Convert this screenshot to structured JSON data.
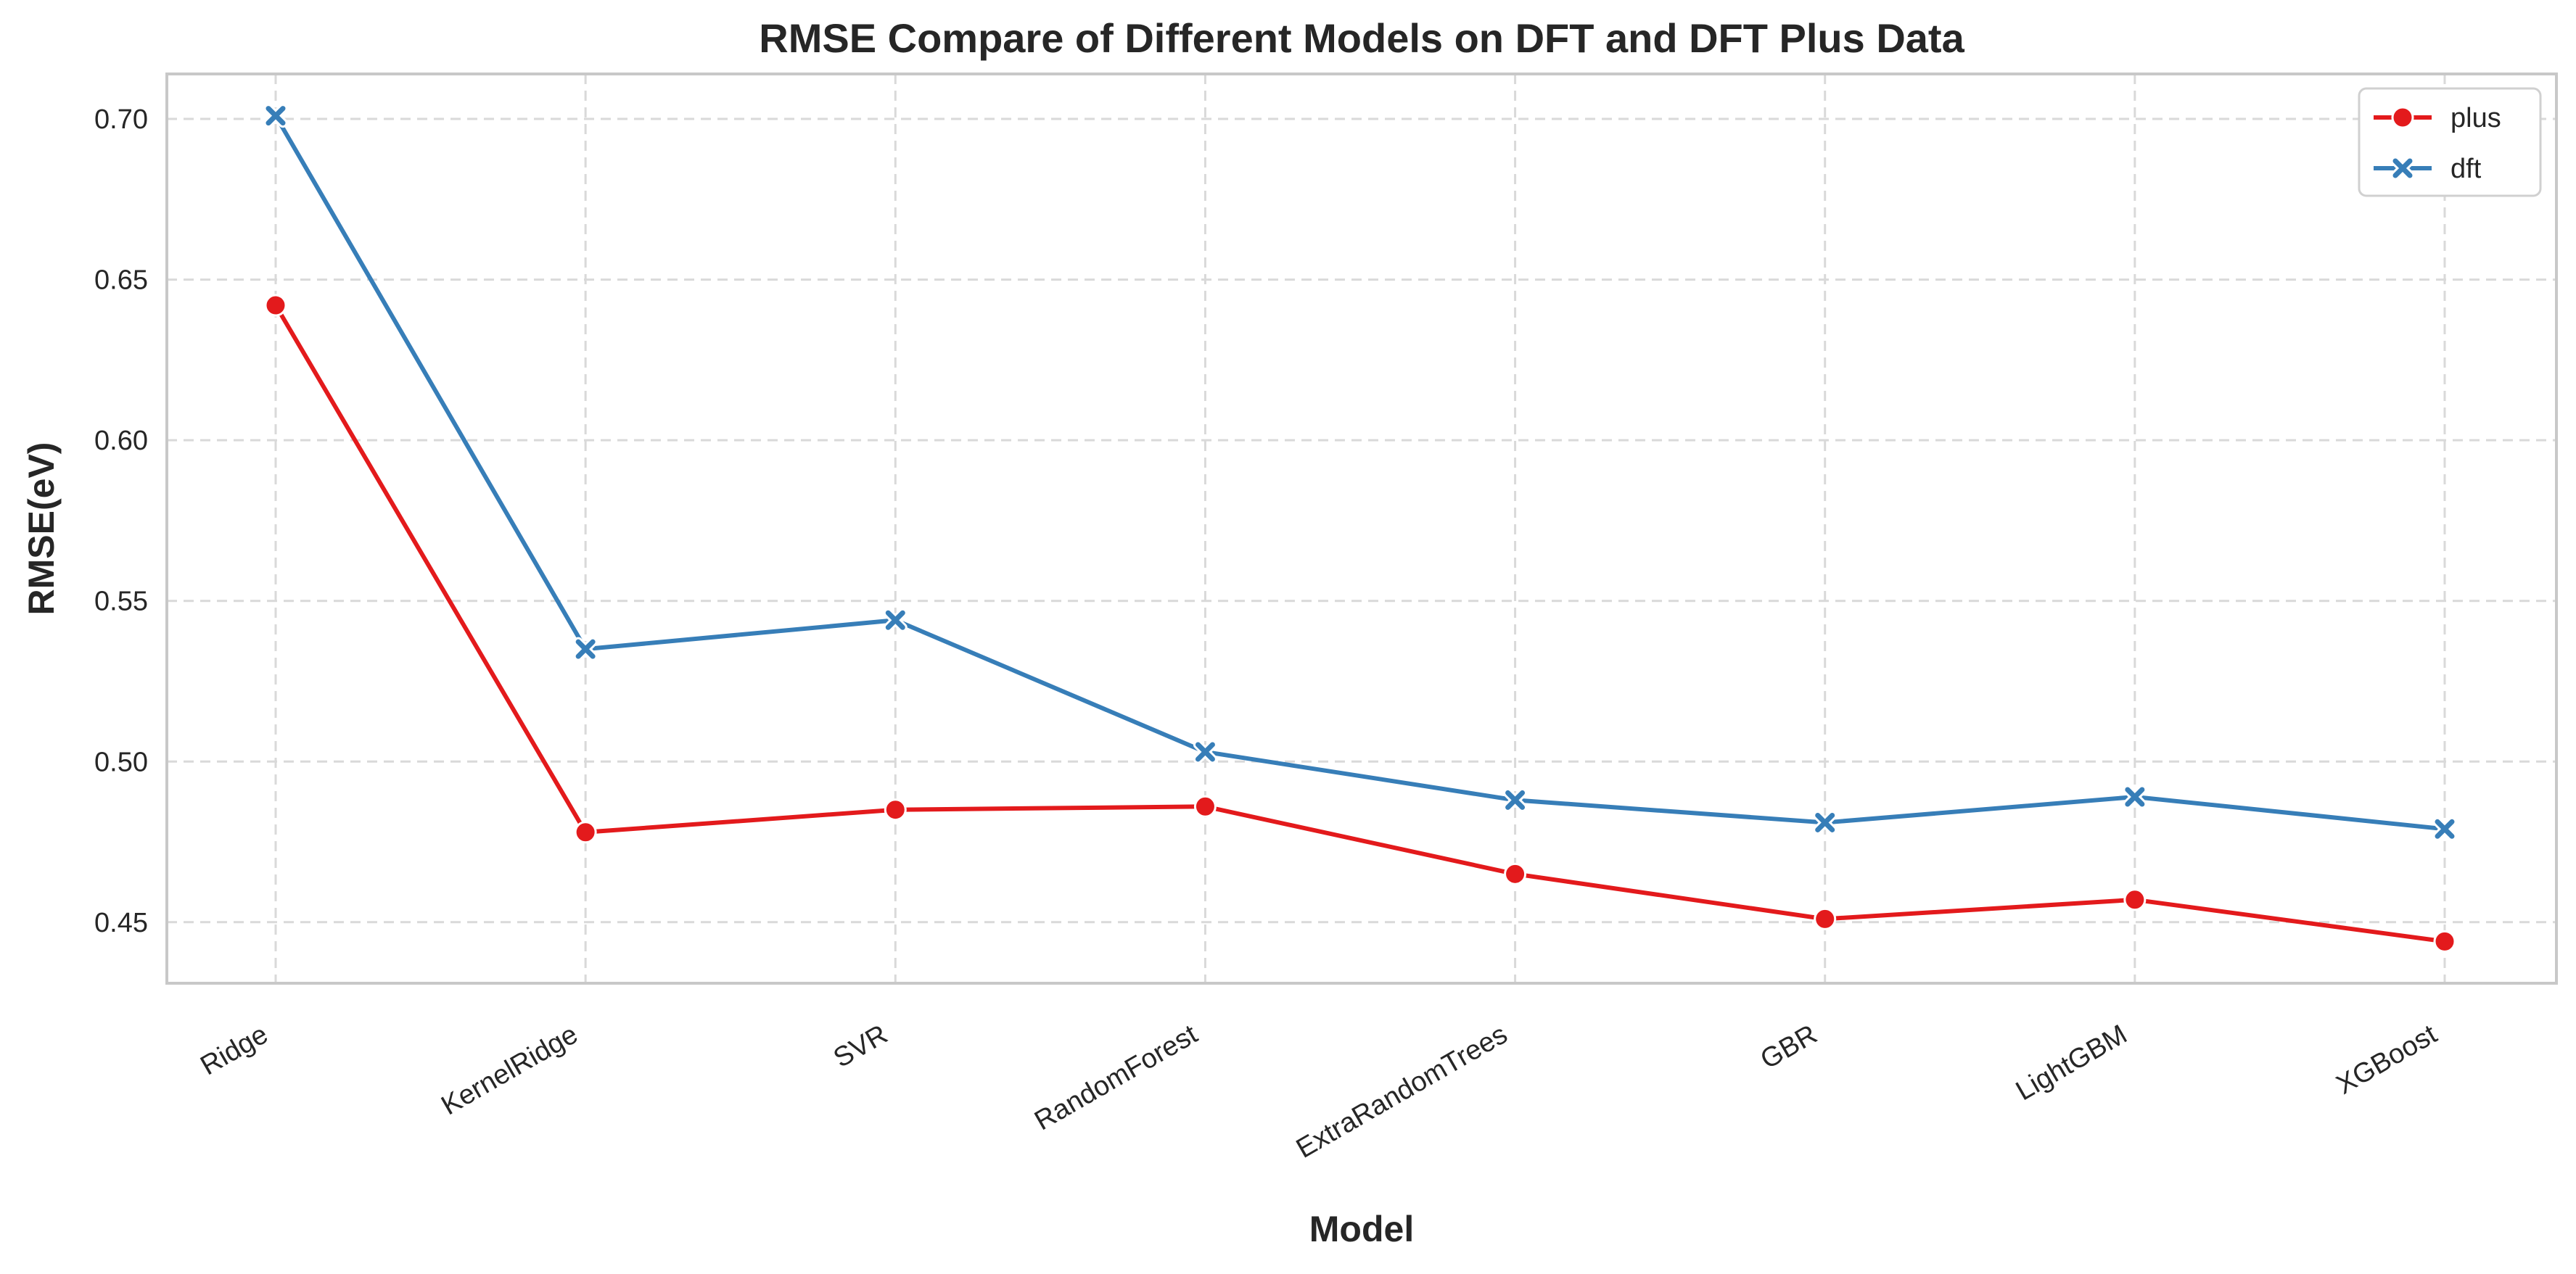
{
  "chart_data": {
    "type": "line",
    "title": "RMSE Compare of Different Models on DFT and DFT Plus Data",
    "xlabel": "Model",
    "ylabel": "RMSE(eV)",
    "categories": [
      "Ridge",
      "KernelRidge",
      "SVR",
      "RandomForest",
      "ExtraRandomTrees",
      "GBR",
      "LightGBM",
      "XGBoost"
    ],
    "yticks": [
      "0.45",
      "0.50",
      "0.55",
      "0.60",
      "0.65",
      "0.70"
    ],
    "ylim": [
      0.431,
      0.714
    ],
    "grid": true,
    "legend_position": "top-right",
    "series": [
      {
        "name": "plus",
        "color": "#e31a1c",
        "marker": "circle",
        "values": [
          0.642,
          0.478,
          0.485,
          0.486,
          0.465,
          0.451,
          0.457,
          0.444
        ]
      },
      {
        "name": "dft",
        "color": "#377eb8",
        "marker": "x",
        "values": [
          0.701,
          0.535,
          0.544,
          0.503,
          0.488,
          0.481,
          0.489,
          0.479
        ]
      }
    ]
  }
}
